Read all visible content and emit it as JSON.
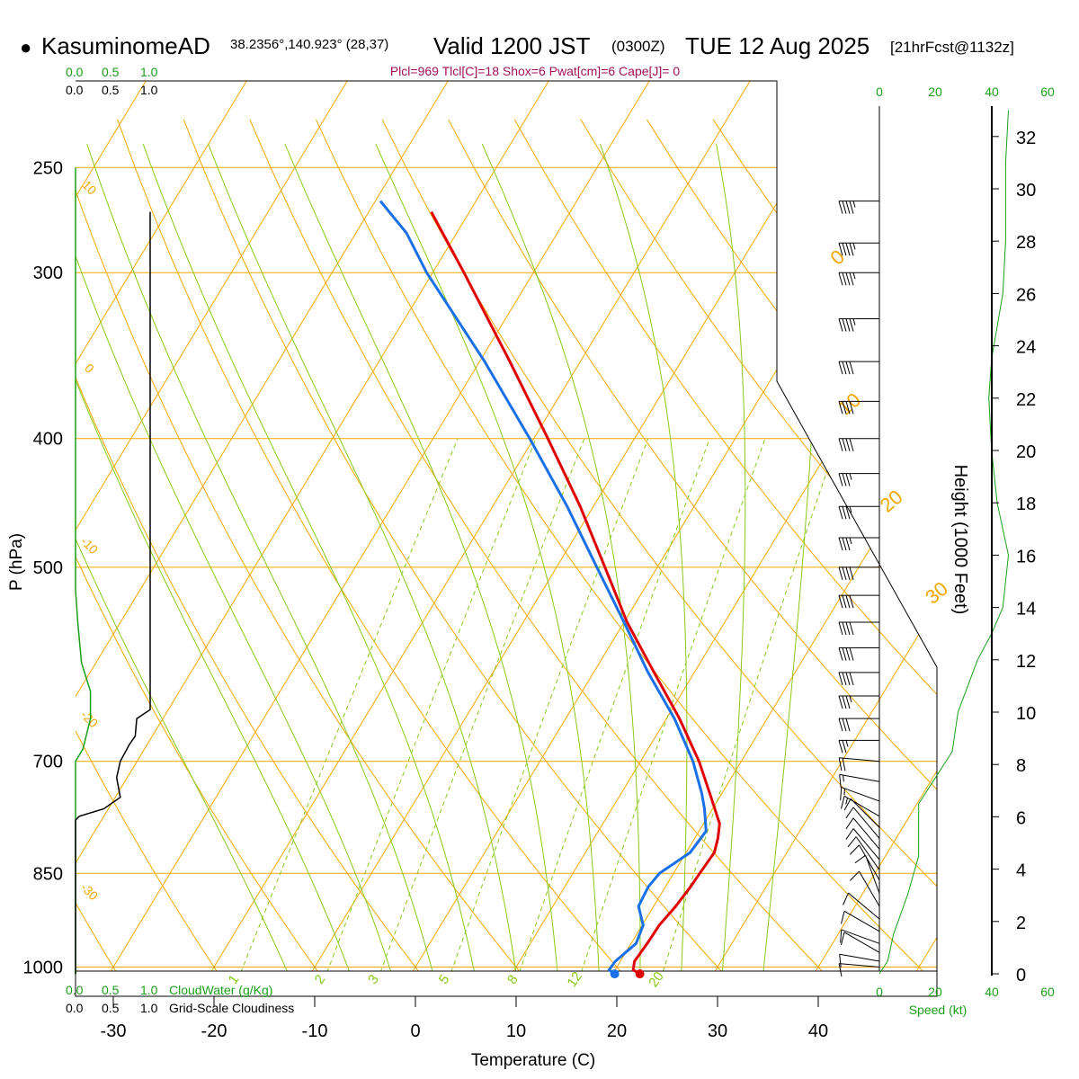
{
  "header": {
    "bullet": "●",
    "station": "KasuminomeAD",
    "coords": "38.2356°,140.923° (28,37)",
    "valid_prefix": "Valid 1200 JST",
    "utc": "(0300Z)",
    "date": "TUE 12 Aug 2025",
    "forecast": "[21hrFcst@1132z]"
  },
  "indices": "Plcl=969 Tlcl[C]=18 Shox=6 Pwat[cm]=6 Cape[J]= 0",
  "colors": {
    "isotherm": "#f0a800",
    "dry_adiabat": "#f0a800",
    "moist_adiabat": "#8ac81a",
    "mixing_ratio": "#8ac81a",
    "temperature": "#e00000",
    "dewpoint": "#1a70e8",
    "cloud_water": "#1aa01a",
    "cloudiness": "#000000",
    "wind_profile": "#1aa01a",
    "index_text": "#a0105a"
  },
  "left_panel": {
    "top_green_ticks": [
      "0.0",
      "0.5",
      "1.0"
    ],
    "top_black_ticks": [
      "0.0",
      "0.5",
      "1.0"
    ],
    "bottom_green_ticks": [
      "0.0",
      "0.5",
      "1.0"
    ],
    "bottom_black_ticks": [
      "0.0",
      "0.5",
      "1.0"
    ],
    "cloudwater_label": "CloudWater (g/Kg)",
    "cloudiness_label": "Grid-Scale Cloudiness"
  },
  "wind_panel": {
    "top_ticks": [
      "0",
      "20",
      "40",
      "60"
    ],
    "bottom_ticks": [
      "0",
      "20",
      "40",
      "60"
    ],
    "speed_label": "Speed (kt)"
  },
  "chart_data": {
    "type": "skew-t",
    "title": "KasuminomeAD Valid 1200 JST (0300Z) TUE 12 Aug 2025",
    "xlabel": "Temperature (C)",
    "ylabel": "P (hPa)",
    "y2label": "Height (1000 Feet)",
    "pressure_levels": [
      250,
      300,
      400,
      500,
      700,
      850,
      1000
    ],
    "pressure_tick_labels": [
      "250",
      "300",
      "400",
      "500",
      "700",
      "850",
      "1000"
    ],
    "temperature_ticks": [
      -30,
      -20,
      -10,
      0,
      10,
      20,
      30,
      40
    ],
    "temperature_tick_labels": [
      "-30",
      "-20",
      "-10",
      "0",
      "10",
      "20",
      "30",
      "40"
    ],
    "height_ticks": [
      0,
      2,
      4,
      6,
      8,
      10,
      12,
      14,
      16,
      18,
      20,
      22,
      24,
      26,
      28,
      30,
      32
    ],
    "height_tick_labels": [
      "0",
      "2",
      "4",
      "6",
      "8",
      "10",
      "12",
      "14",
      "16",
      "18",
      "20",
      "22",
      "24",
      "26",
      "28",
      "30",
      "32"
    ],
    "isotherm_labels": [
      "0",
      "10",
      "20",
      "30"
    ],
    "dry_adiabat_labels": [
      "10",
      "0",
      "-10",
      "-20",
      "-30"
    ],
    "mixing_ratio_labels": [
      "1",
      "2",
      "3",
      "5",
      "8",
      "12",
      "20"
    ],
    "temperature_profile": [
      {
        "p": 1012,
        "t": 22.7
      },
      {
        "p": 1005,
        "t": 21.8
      },
      {
        "p": 990,
        "t": 21.4
      },
      {
        "p": 960,
        "t": 21.6
      },
      {
        "p": 930,
        "t": 21.7
      },
      {
        "p": 900,
        "t": 22.2
      },
      {
        "p": 870,
        "t": 22.5
      },
      {
        "p": 850,
        "t": 22.6
      },
      {
        "p": 820,
        "t": 22.8
      },
      {
        "p": 800,
        "t": 22.3
      },
      {
        "p": 780,
        "t": 21.6
      },
      {
        "p": 740,
        "t": 18.8
      },
      {
        "p": 700,
        "t": 15.8
      },
      {
        "p": 650,
        "t": 11.3
      },
      {
        "p": 600,
        "t": 6.0
      },
      {
        "p": 550,
        "t": 0.3
      },
      {
        "p": 500,
        "t": -5.2
      },
      {
        "p": 450,
        "t": -11.3
      },
      {
        "p": 400,
        "t": -18.6
      },
      {
        "p": 350,
        "t": -27.0
      },
      {
        "p": 300,
        "t": -36.9
      },
      {
        "p": 270,
        "t": -43.8
      }
    ],
    "dewpoint_profile": [
      {
        "p": 1012,
        "t": 20.2
      },
      {
        "p": 1005,
        "t": 19.4
      },
      {
        "p": 990,
        "t": 19.5
      },
      {
        "p": 960,
        "t": 20.5
      },
      {
        "p": 930,
        "t": 20.1
      },
      {
        "p": 900,
        "t": 18.5
      },
      {
        "p": 870,
        "t": 18.3
      },
      {
        "p": 850,
        "t": 18.6
      },
      {
        "p": 820,
        "t": 20.4
      },
      {
        "p": 790,
        "t": 20.7
      },
      {
        "p": 760,
        "t": 19.2
      },
      {
        "p": 740,
        "t": 18.0
      },
      {
        "p": 700,
        "t": 15.2
      },
      {
        "p": 650,
        "t": 10.8
      },
      {
        "p": 600,
        "t": 5.4
      },
      {
        "p": 550,
        "t": 0.0
      },
      {
        "p": 500,
        "t": -6.0
      },
      {
        "p": 450,
        "t": -12.6
      },
      {
        "p": 400,
        "t": -20.4
      },
      {
        "p": 350,
        "t": -29.5
      },
      {
        "p": 300,
        "t": -40.6
      },
      {
        "p": 280,
        "t": -45.0
      },
      {
        "p": 265,
        "t": -49.5
      }
    ],
    "surface_temperature": 22.7,
    "surface_dewpoint": 20.2,
    "cloud_water_profile": [
      {
        "p": 1012,
        "v": 0.0
      },
      {
        "p": 700,
        "v": 0.0
      },
      {
        "p": 685,
        "v": 0.1
      },
      {
        "p": 650,
        "v": 0.2
      },
      {
        "p": 620,
        "v": 0.2
      },
      {
        "p": 590,
        "v": 0.08
      },
      {
        "p": 550,
        "v": 0.03
      },
      {
        "p": 520,
        "v": 0.0
      },
      {
        "p": 250,
        "v": 0.0
      }
    ],
    "cloudiness_profile": [
      {
        "p": 1012,
        "v": 0.0
      },
      {
        "p": 775,
        "v": 0.0
      },
      {
        "p": 770,
        "v": 0.05
      },
      {
        "p": 760,
        "v": 0.38
      },
      {
        "p": 745,
        "v": 0.6
      },
      {
        "p": 720,
        "v": 0.55
      },
      {
        "p": 700,
        "v": 0.6
      },
      {
        "p": 680,
        "v": 0.72
      },
      {
        "p": 670,
        "v": 0.8
      },
      {
        "p": 650,
        "v": 0.82
      },
      {
        "p": 640,
        "v": 1.0
      },
      {
        "p": 270,
        "v": 1.0
      }
    ],
    "wind_speed_profile": [
      {
        "h": 0.0,
        "s": 0
      },
      {
        "h": 0.5,
        "s": 3
      },
      {
        "h": 1.5,
        "s": 5
      },
      {
        "h": 3.0,
        "s": 10
      },
      {
        "h": 4.5,
        "s": 14
      },
      {
        "h": 5.5,
        "s": 14
      },
      {
        "h": 6.5,
        "s": 14
      },
      {
        "h": 7.5,
        "s": 20
      },
      {
        "h": 8.5,
        "s": 26
      },
      {
        "h": 10.0,
        "s": 28
      },
      {
        "h": 12.0,
        "s": 35
      },
      {
        "h": 13.0,
        "s": 40
      },
      {
        "h": 14.0,
        "s": 44
      },
      {
        "h": 16.0,
        "s": 46
      },
      {
        "h": 18.0,
        "s": 42
      },
      {
        "h": 20.0,
        "s": 40
      },
      {
        "h": 22.0,
        "s": 39
      },
      {
        "h": 23.5,
        "s": 40
      },
      {
        "h": 26.0,
        "s": 44
      },
      {
        "h": 28.0,
        "s": 45
      },
      {
        "h": 31.0,
        "s": 45
      },
      {
        "h": 33.0,
        "s": 46
      }
    ],
    "wind_barbs": [
      {
        "p": 1000,
        "dir": 275,
        "spd": 8
      },
      {
        "p": 990,
        "dir": 280,
        "spd": 10
      },
      {
        "p": 975,
        "dir": 300,
        "spd": 12
      },
      {
        "p": 960,
        "dir": 290,
        "spd": 10
      },
      {
        "p": 940,
        "dir": 300,
        "spd": 10
      },
      {
        "p": 920,
        "dir": 310,
        "spd": 10
      },
      {
        "p": 900,
        "dir": 330,
        "spd": 10
      },
      {
        "p": 880,
        "dir": 340,
        "spd": 10
      },
      {
        "p": 860,
        "dir": 330,
        "spd": 12
      },
      {
        "p": 845,
        "dir": 325,
        "spd": 12
      },
      {
        "p": 830,
        "dir": 320,
        "spd": 12
      },
      {
        "p": 815,
        "dir": 320,
        "spd": 12
      },
      {
        "p": 800,
        "dir": 320,
        "spd": 12
      },
      {
        "p": 785,
        "dir": 315,
        "spd": 12
      },
      {
        "p": 770,
        "dir": 300,
        "spd": 15
      },
      {
        "p": 750,
        "dir": 290,
        "spd": 15
      },
      {
        "p": 725,
        "dir": 280,
        "spd": 15
      },
      {
        "p": 700,
        "dir": 275,
        "spd": 20
      },
      {
        "p": 675,
        "dir": 270,
        "spd": 25
      },
      {
        "p": 650,
        "dir": 270,
        "spd": 30
      },
      {
        "p": 625,
        "dir": 270,
        "spd": 35
      },
      {
        "p": 600,
        "dir": 270,
        "spd": 40
      },
      {
        "p": 575,
        "dir": 270,
        "spd": 40
      },
      {
        "p": 550,
        "dir": 270,
        "spd": 40
      },
      {
        "p": 525,
        "dir": 270,
        "spd": 40
      },
      {
        "p": 500,
        "dir": 270,
        "spd": 40
      },
      {
        "p": 475,
        "dir": 270,
        "spd": 35
      },
      {
        "p": 450,
        "dir": 270,
        "spd": 35
      },
      {
        "p": 425,
        "dir": 270,
        "spd": 35
      },
      {
        "p": 400,
        "dir": 270,
        "spd": 40
      },
      {
        "p": 375,
        "dir": 270,
        "spd": 40
      },
      {
        "p": 350,
        "dir": 270,
        "spd": 40
      },
      {
        "p": 325,
        "dir": 270,
        "spd": 45
      },
      {
        "p": 300,
        "dir": 270,
        "spd": 45
      },
      {
        "p": 285,
        "dir": 270,
        "spd": 45
      },
      {
        "p": 265,
        "dir": 270,
        "spd": 45
      }
    ]
  }
}
